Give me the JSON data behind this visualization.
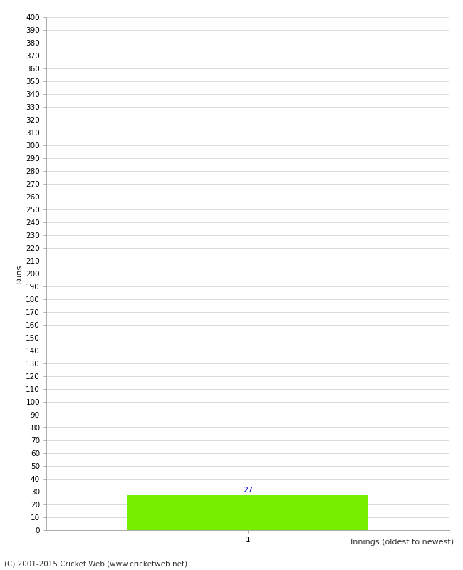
{
  "xlabel": "Innings (oldest to newest)",
  "ylabel": "Runs",
  "bar_values": [
    27
  ],
  "bar_positions": [
    1
  ],
  "bar_color": "#77ee00",
  "bar_width": 0.6,
  "ylim": [
    0,
    400
  ],
  "ytick_step": 10,
  "xlim": [
    0.5,
    1.5
  ],
  "footer": "(C) 2001-2015 Cricket Web (www.cricketweb.net)",
  "background_color": "#ffffff",
  "grid_color": "#cccccc",
  "value_label_color": "#0000cc",
  "value_label_fontsize": 8,
  "tick_fontsize": 7.5,
  "axis_label_fontsize": 8
}
